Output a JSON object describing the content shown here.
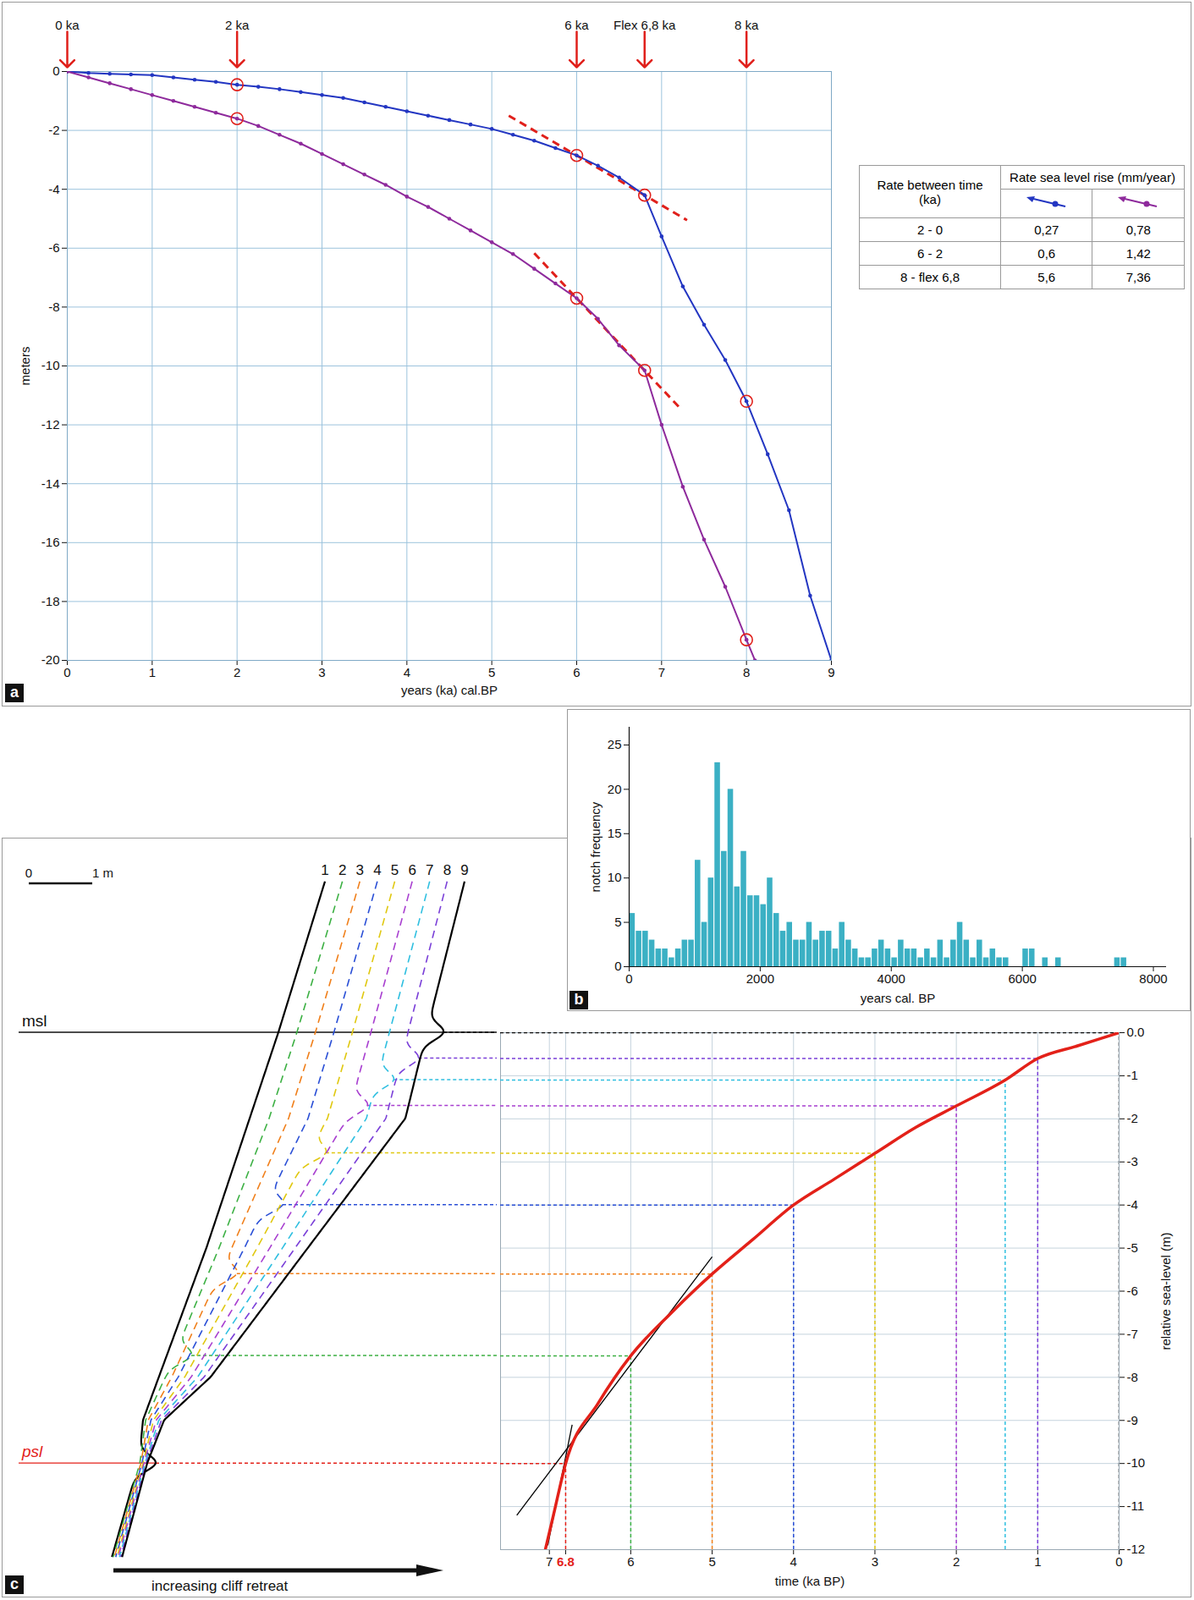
{
  "chart_data": [
    {
      "panel": "a",
      "type": "line",
      "x_label": "years (ka) cal.BP",
      "y_label": "meters",
      "xlim": [
        0,
        9
      ],
      "ylim": [
        -20,
        0
      ],
      "xticks": [
        0,
        1,
        2,
        3,
        4,
        5,
        6,
        7,
        8,
        9
      ],
      "yticks": [
        -20,
        -18,
        -16,
        -14,
        -12,
        -10,
        -8,
        -6,
        -4,
        -2,
        0
      ],
      "grid": true,
      "series": [
        {
          "color": "#2336c2",
          "marker": "circle",
          "x": [
            0,
            0.25,
            0.5,
            0.75,
            1,
            1.25,
            1.5,
            1.75,
            2,
            2.25,
            2.5,
            2.75,
            3,
            3.25,
            3.5,
            3.75,
            4,
            4.25,
            4.5,
            4.75,
            5,
            5.25,
            5.5,
            5.75,
            6,
            6.25,
            6.5,
            6.8,
            7,
            7.25,
            7.5,
            7.75,
            8,
            8.25,
            8.5,
            8.75,
            9
          ],
          "values": [
            0,
            -0.05,
            -0.08,
            -0.1,
            -0.12,
            -0.2,
            -0.28,
            -0.35,
            -0.45,
            -0.52,
            -0.6,
            -0.7,
            -0.8,
            -0.9,
            -1.05,
            -1.2,
            -1.35,
            -1.5,
            -1.65,
            -1.8,
            -1.95,
            -2.15,
            -2.35,
            -2.6,
            -2.85,
            -3.2,
            -3.6,
            -4.2,
            -5.6,
            -7.3,
            -8.6,
            -9.8,
            -11.2,
            -13,
            -14.9,
            -17.8,
            -20
          ]
        },
        {
          "color": "#8e2a9c",
          "marker": "circle",
          "x": [
            0,
            0.25,
            0.5,
            0.75,
            1,
            1.25,
            1.5,
            1.75,
            2,
            2.25,
            2.5,
            2.75,
            3,
            3.25,
            3.5,
            3.75,
            4,
            4.25,
            4.5,
            4.75,
            5,
            5.25,
            5.5,
            5.75,
            6,
            6.25,
            6.5,
            6.8,
            7,
            7.25,
            7.5,
            7.75,
            8,
            8.1
          ],
          "values": [
            0,
            -0.2,
            -0.4,
            -0.6,
            -0.8,
            -1,
            -1.2,
            -1.4,
            -1.6,
            -1.85,
            -2.15,
            -2.45,
            -2.8,
            -3.15,
            -3.5,
            -3.85,
            -4.25,
            -4.6,
            -5,
            -5.4,
            -5.8,
            -6.2,
            -6.7,
            -7.2,
            -7.7,
            -8.4,
            -9.3,
            -10.15,
            -12,
            -14.1,
            -15.9,
            -17.5,
            -19.3,
            -20
          ]
        }
      ],
      "circles": [
        {
          "x": 2,
          "y": -0.45,
          "color": "#e0201b"
        },
        {
          "x": 6,
          "y": -2.85,
          "color": "#e0201b"
        },
        {
          "x": 6.8,
          "y": -4.2,
          "color": "#e0201b"
        },
        {
          "x": 8,
          "y": -11.2,
          "color": "#e0201b"
        },
        {
          "x": 2,
          "y": -1.6,
          "color": "#e0201b"
        },
        {
          "x": 6,
          "y": -7.7,
          "color": "#e0201b"
        },
        {
          "x": 6.8,
          "y": -10.15,
          "color": "#e0201b"
        },
        {
          "x": 8,
          "y": -19.3,
          "color": "#e0201b"
        }
      ],
      "tangents": [
        {
          "x1": 5.2,
          "y1": -1.5,
          "x2": 7.3,
          "y2": -5.05,
          "color": "#e0201b",
          "line_style": "dashed"
        },
        {
          "x1": 5.5,
          "y1": -6.17,
          "x2": 7.2,
          "y2": -11.38,
          "color": "#e0201b",
          "line_style": "dashed"
        }
      ],
      "arrows": [
        {
          "x": 0,
          "label": "0 ka",
          "color": "#e0201b"
        },
        {
          "x": 2,
          "label": "2 ka",
          "color": "#e0201b"
        },
        {
          "x": 6,
          "label": "6 ka",
          "color": "#e0201b"
        },
        {
          "x": 6.8,
          "label": "Flex 6,8 ka",
          "color": "#e0201b"
        },
        {
          "x": 8,
          "label": "8 ka",
          "color": "#e0201b"
        }
      ]
    },
    {
      "panel": "b",
      "type": "histogram",
      "x_label": "years cal. BP",
      "y_label": "notch frequency",
      "xlim": [
        0,
        8200
      ],
      "ylim": [
        0,
        27
      ],
      "xticks": [
        0,
        2000,
        4000,
        6000,
        8000
      ],
      "yticks": [
        0,
        5,
        10,
        15,
        20,
        25
      ],
      "color": "#3bb0c4",
      "bins": [
        0,
        100,
        200,
        300,
        400,
        500,
        600,
        700,
        800,
        900,
        1000,
        1100,
        1200,
        1300,
        1400,
        1500,
        1600,
        1700,
        1800,
        1900,
        2000,
        2100,
        2200,
        2300,
        2400,
        2500,
        2600,
        2700,
        2800,
        2900,
        3000,
        3100,
        3200,
        3300,
        3400,
        3500,
        3600,
        3700,
        3800,
        3900,
        4000,
        4100,
        4200,
        4300,
        4400,
        4500,
        4600,
        4700,
        4800,
        4900,
        5000,
        5100,
        5200,
        5300,
        5400,
        5500,
        5600,
        5700,
        5800,
        5900,
        6000,
        6100,
        6200,
        6300,
        6400,
        6500,
        6600,
        6700,
        6800,
        6900,
        7000,
        7100,
        7200,
        7300,
        7400,
        7500,
        7600,
        7700,
        7800,
        7900,
        8000
      ],
      "counts": [
        6,
        4,
        4,
        3,
        2,
        2,
        1,
        2,
        3,
        3,
        12,
        5,
        10,
        23,
        13,
        20,
        9,
        13,
        8,
        8,
        7,
        10,
        6,
        4,
        5,
        3,
        3,
        5,
        3,
        4,
        4,
        2,
        5,
        3,
        2,
        1,
        1,
        2,
        3,
        2,
        1,
        3,
        2,
        2,
        1,
        2,
        1,
        3,
        1,
        3,
        5,
        3,
        1,
        3,
        1,
        2,
        1,
        1,
        0,
        0,
        2,
        2,
        0,
        1,
        0,
        1,
        0,
        0,
        0,
        0,
        0,
        0,
        0,
        0,
        1,
        1,
        0,
        0,
        0,
        0
      ]
    },
    {
      "panel": "c",
      "type": "line",
      "x_label": "time (ka BP)",
      "y_label": "relative sea-level (m)",
      "xlim": [
        7.6,
        0
      ],
      "ylim": [
        -12,
        0
      ],
      "xticks": [
        7,
        6.8,
        6,
        5,
        4,
        3,
        2,
        1,
        0
      ],
      "yticks": [
        {
          "value": 0,
          "label": "0.0"
        },
        -1,
        -2,
        -3,
        -4,
        -5,
        -6,
        -7,
        -8,
        -9,
        -10,
        -11,
        -12
      ],
      "grid": true,
      "color": "#e32119",
      "x": [
        0,
        0.5,
        1,
        1.4,
        2,
        2.5,
        3,
        3.5,
        4,
        4.5,
        5,
        5.5,
        6,
        6.4,
        6.8,
        6.95,
        7.05
      ],
      "values": [
        0,
        -0.3,
        -0.6,
        -1.1,
        -1.7,
        -2.2,
        -2.8,
        -3.4,
        -4,
        -4.8,
        -5.6,
        -6.5,
        -7.5,
        -8.6,
        -10,
        -11.2,
        -12
      ],
      "tangents": [
        {
          "x1": 7.4,
          "y1": -11.2,
          "x2": 5.0,
          "y2": -5.2,
          "color": "#000000",
          "line_style": "solid"
        },
        {
          "x1": 7.02,
          "y1": -11.9,
          "x2": 6.72,
          "y2": -9.1,
          "color": "#000000",
          "line_style": "solid"
        }
      ],
      "markers": [
        {
          "x": 6.8,
          "y": -10,
          "color": "#e32119"
        },
        {
          "x": 6,
          "y": -7.5,
          "color": "#3cb043"
        },
        {
          "x": 5,
          "y": -5.6,
          "color": "#f07f1a"
        },
        {
          "x": 4,
          "y": -4,
          "color": "#2a4fd6"
        },
        {
          "x": 3,
          "y": -2.8,
          "color": "#e0c810"
        },
        {
          "x": 2,
          "y": -1.7,
          "color": "#a83fd0"
        },
        {
          "x": 1.4,
          "y": -1.1,
          "color": "#2fbfe0"
        },
        {
          "x": 1,
          "y": -0.6,
          "color": "#7a3fd8"
        },
        {
          "x": 0,
          "y": 0,
          "color": "#000000"
        }
      ]
    }
  ],
  "table": {
    "header": [
      "Rate between time (ka)",
      "Rate sea level rise (mm/year)"
    ],
    "rows": [
      [
        "2 - 0",
        "0,27",
        "0,78"
      ],
      [
        "6 - 2",
        "0,6",
        "1,42"
      ],
      [
        "8 - flex 6,8",
        "5,6",
        "7,36"
      ]
    ]
  },
  "cliff_diagram": {
    "msl_label": "msl",
    "psl_label": "psl",
    "msl_level": 0,
    "psl_level": -10,
    "scale_bar": {
      "start_label": "0",
      "end_label": "1 m",
      "length": 1
    },
    "arrow_label": "increasing cliff retreat",
    "profiles": [
      {
        "label": "1",
        "color": "#000000",
        "line_style": "solid",
        "notch_level": -10
      },
      {
        "label": "2",
        "color": "#3cb043",
        "line_style": "dashed",
        "notch_level": -7.5
      },
      {
        "label": "3",
        "color": "#f07f1a",
        "line_style": "dashed",
        "notch_level": -5.6
      },
      {
        "label": "4",
        "color": "#2a4fd6",
        "line_style": "dashed",
        "notch_level": -4
      },
      {
        "label": "5",
        "color": "#e0c810",
        "line_style": "dashed",
        "notch_level": -2.8
      },
      {
        "label": "6",
        "color": "#a83fd0",
        "line_style": "dashed",
        "notch_level": -1.7
      },
      {
        "label": "7",
        "color": "#2fbfe0",
        "line_style": "dashed",
        "notch_level": -1.1
      },
      {
        "label": "8",
        "color": "#7a3fd8",
        "line_style": "dashed",
        "notch_level": -0.6
      },
      {
        "label": "9",
        "color": "#000000",
        "line_style": "solid",
        "notch_level": 0
      }
    ]
  }
}
